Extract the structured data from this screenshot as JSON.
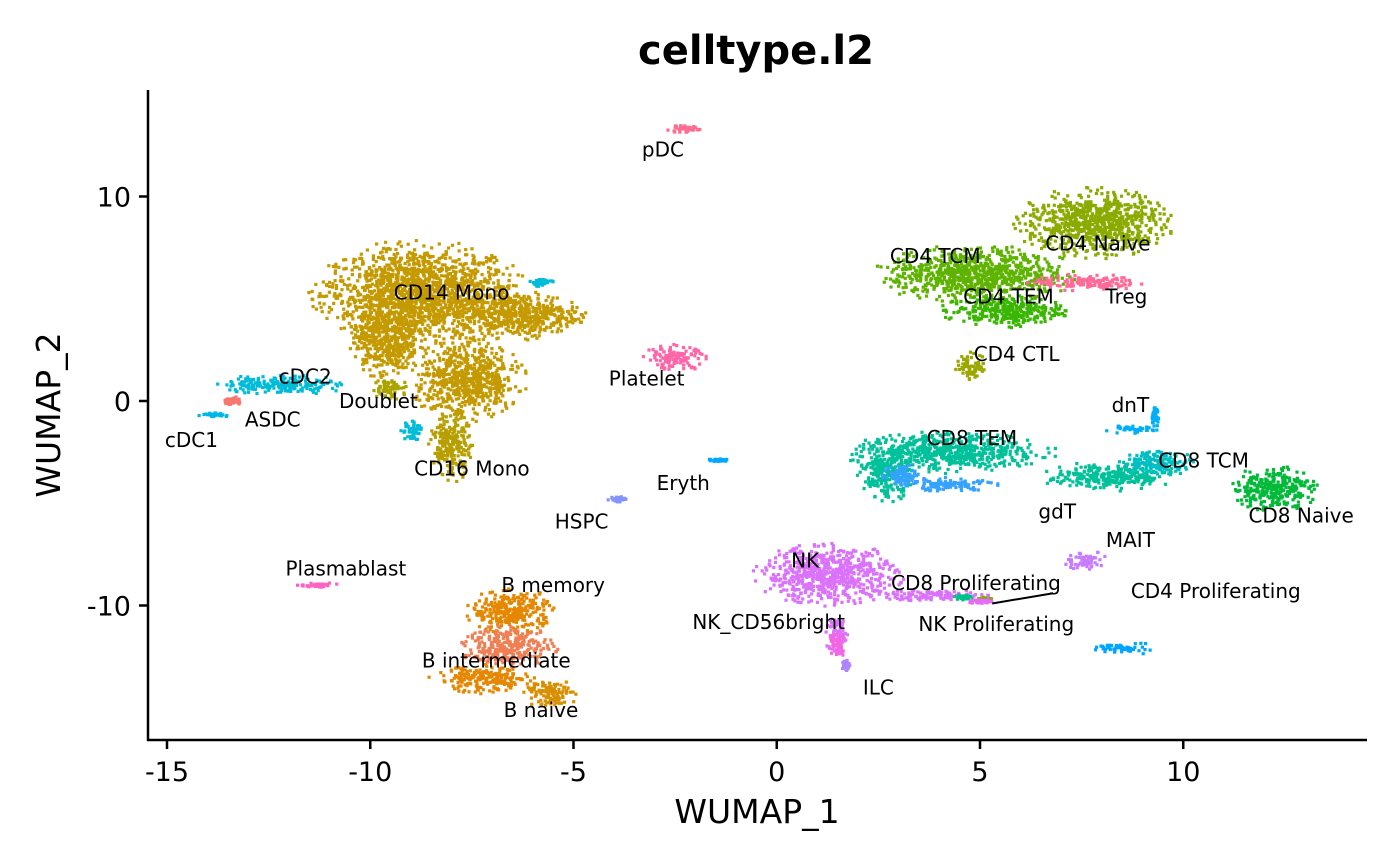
{
  "chart_data": {
    "type": "scatter",
    "title": "celltype.l2",
    "xlabel": "WUMAP_1",
    "ylabel": "WUMAP_2",
    "xlim": [
      -15.5,
      14.5
    ],
    "ylim": [
      -16.5,
      15
    ],
    "xticks": [
      -15,
      -10,
      -5,
      0,
      5,
      10
    ],
    "yticks": [
      -10,
      0,
      10
    ],
    "xtick_labels": [
      "-15",
      "-10",
      "-5",
      "0",
      "5",
      "10"
    ],
    "ytick_labels": [
      "-10",
      "0",
      "10"
    ],
    "grid": false,
    "legend": "none",
    "clusters": [
      {
        "name": "CD14 Mono",
        "color": "#C49A00",
        "blobs": [
          [
            -8.8,
            5.2,
            2.6,
            2.6
          ],
          [
            -6.3,
            4.2,
            1.6,
            1.2
          ],
          [
            -9.6,
            3.0,
            0.9,
            2.0
          ],
          [
            -7.6,
            1.0,
            1.4,
            2.0
          ]
        ],
        "label": [
          -8.0,
          5.3
        ]
      },
      {
        "name": "CD16 Mono",
        "color": "#B79F00",
        "blobs": [
          [
            -8.0,
            -2.2,
            0.55,
            1.7
          ]
        ],
        "label": [
          -7.5,
          -3.3
        ]
      },
      {
        "name": "Doublet",
        "color": "#ABA300",
        "blobs": [
          [
            -9.5,
            0.6,
            0.5,
            0.5
          ]
        ],
        "label": [
          -9.8,
          0.0
        ]
      },
      {
        "name": "cDC2",
        "color": "#00BCD8",
        "blobs": [
          [
            -12.2,
            0.8,
            1.6,
            0.5
          ],
          [
            -9.0,
            -1.4,
            0.3,
            0.6
          ],
          [
            -5.8,
            5.8,
            0.3,
            0.2
          ]
        ],
        "label": [
          -11.6,
          1.2
        ]
      },
      {
        "name": "ASDC",
        "color": "#F8766D",
        "blobs": [
          [
            -13.4,
            0.0,
            0.3,
            0.2
          ]
        ],
        "label": [
          -12.4,
          -0.9
        ]
      },
      {
        "name": "cDC1",
        "color": "#00B8E7",
        "blobs": [
          [
            -13.9,
            -0.7,
            0.4,
            0.12
          ]
        ],
        "label": [
          -14.4,
          -1.9
        ]
      },
      {
        "name": "pDC",
        "color": "#FF6C91",
        "blobs": [
          [
            -2.3,
            13.3,
            0.45,
            0.18
          ]
        ],
        "label": [
          -2.8,
          12.3
        ]
      },
      {
        "name": "Platelet",
        "color": "#FF66A8",
        "blobs": [
          [
            -2.5,
            2.1,
            0.8,
            0.65
          ]
        ],
        "label": [
          -3.2,
          1.1
        ]
      },
      {
        "name": "Eryth",
        "color": "#00A9FF",
        "blobs": [
          [
            -1.4,
            -2.9,
            0.3,
            0.1
          ]
        ],
        "label": [
          -2.3,
          -4.0
        ]
      },
      {
        "name": "HSPC",
        "color": "#8494FF",
        "blobs": [
          [
            -3.9,
            -4.8,
            0.25,
            0.15
          ]
        ],
        "label": [
          -4.8,
          -5.9
        ]
      },
      {
        "name": "Plasmablast",
        "color": "#FF61C3",
        "blobs": [
          [
            -11.3,
            -9.0,
            0.5,
            0.12
          ]
        ],
        "label": [
          -10.6,
          -8.2
        ]
      },
      {
        "name": "B memory",
        "color": "#E58700",
        "blobs": [
          [
            -6.5,
            -10.3,
            1.1,
            1.1
          ],
          [
            -7.2,
            -13.6,
            1.3,
            0.7
          ]
        ],
        "label": [
          -5.5,
          -9.0
        ]
      },
      {
        "name": "B intermediate",
        "color": "#F07F53",
        "blobs": [
          [
            -6.6,
            -12.0,
            1.2,
            1.0
          ]
        ],
        "label": [
          -6.9,
          -12.7
        ]
      },
      {
        "name": "B naive",
        "color": "#D89000",
        "blobs": [
          [
            -5.6,
            -14.3,
            0.7,
            0.7
          ]
        ],
        "label": [
          -5.8,
          -15.1
        ]
      },
      {
        "name": "CD4 Naive",
        "color": "#8AAB00",
        "blobs": [
          [
            7.8,
            8.7,
            1.9,
            1.7
          ]
        ],
        "label": [
          7.9,
          7.7
        ]
      },
      {
        "name": "CD4 TCM",
        "color": "#5EB300",
        "blobs": [
          [
            4.9,
            6.2,
            2.4,
            1.4
          ]
        ],
        "label": [
          3.9,
          7.1
        ]
      },
      {
        "name": "CD4 TEM",
        "color": "#39B600",
        "blobs": [
          [
            5.6,
            4.4,
            1.6,
            0.8
          ]
        ],
        "label": [
          5.7,
          5.1
        ]
      },
      {
        "name": "Treg",
        "color": "#FF6A98",
        "blobs": [
          [
            7.6,
            5.8,
            1.4,
            0.4
          ]
        ],
        "label": [
          8.6,
          5.1
        ]
      },
      {
        "name": "CD4 CTL",
        "color": "#9CA700",
        "blobs": [
          [
            4.8,
            1.7,
            0.4,
            0.7
          ]
        ],
        "label": [
          5.9,
          2.3
        ]
      },
      {
        "name": "CD8 TEM",
        "color": "#00C19A",
        "blobs": [
          [
            4.2,
            -2.5,
            2.6,
            1.0
          ],
          [
            8.2,
            -3.7,
            1.7,
            0.7
          ],
          [
            2.7,
            -3.7,
            0.7,
            1.2
          ]
        ],
        "label": [
          4.8,
          -1.8
        ]
      },
      {
        "name": "CD8 TCM",
        "color": "#00BFC4",
        "blobs": [
          [
            9.4,
            -3.0,
            1.0,
            0.6
          ]
        ],
        "label": [
          10.5,
          -2.9
        ]
      },
      {
        "name": "CD8 Naive",
        "color": "#00BA38",
        "blobs": [
          [
            12.2,
            -4.3,
            1.1,
            1.1
          ]
        ],
        "label": [
          12.9,
          -5.6
        ]
      },
      {
        "name": "dnT",
        "color": "#00AEFA",
        "blobs": [
          [
            8.7,
            -1.4,
            0.7,
            0.2
          ],
          [
            9.3,
            -0.8,
            0.1,
            0.5
          ]
        ],
        "label": [
          8.7,
          -0.2
        ]
      },
      {
        "name": "gdT",
        "color": "#35A2FF",
        "blobs": [
          [
            4.2,
            -4.1,
            1.3,
            0.35
          ],
          [
            3.1,
            -3.6,
            0.5,
            0.6
          ]
        ],
        "label": [
          6.9,
          -5.4
        ]
      },
      {
        "name": "MAIT",
        "color": "#C77CFF",
        "blobs": [
          [
            7.6,
            -7.8,
            0.5,
            0.5
          ]
        ],
        "label": [
          8.7,
          -6.8
        ]
      },
      {
        "name": "NK",
        "color": "#DB72FB",
        "blobs": [
          [
            1.3,
            -8.5,
            1.8,
            1.5
          ],
          [
            1.5,
            -11.5,
            0.3,
            1.1
          ],
          [
            3.7,
            -9.5,
            1.6,
            0.3
          ]
        ],
        "label": [
          0.7,
          -7.8
        ]
      },
      {
        "name": "NK_CD56bright",
        "color": "#F564E3",
        "blobs": [
          [
            1.5,
            -11.8,
            0.25,
            0.7
          ]
        ],
        "label": [
          -0.2,
          -10.8
        ]
      },
      {
        "name": "ILC",
        "color": "#AE87FF",
        "blobs": [
          [
            1.7,
            -12.9,
            0.1,
            0.3
          ]
        ],
        "label": [
          2.5,
          -14.0
        ]
      },
      {
        "name": "CD8 Proliferating",
        "color": "#00C08B",
        "blobs": [
          [
            4.6,
            -9.6,
            0.25,
            0.15
          ]
        ],
        "label": [
          4.9,
          -8.9
        ]
      },
      {
        "name": "CD4 Proliferating",
        "color": "#7CAE00",
        "blobs": [
          [
            5.1,
            -9.7,
            0.2,
            0.1
          ]
        ],
        "label": [
          10.8,
          -9.3
        ]
      },
      {
        "name": "NK Proliferating",
        "color": "#E76BF3",
        "blobs": [
          [
            5.0,
            -9.8,
            0.3,
            0.12
          ]
        ],
        "label": [
          5.4,
          -10.9
        ]
      },
      {
        "name": "",
        "color": "#00A5FF",
        "blobs": [
          [
            8.6,
            -12.1,
            0.8,
            0.3
          ]
        ],
        "label": null
      }
    ],
    "leader_lines": [
      [
        [
          5.3,
          -9.9
        ],
        [
          6.8,
          -9.4
        ]
      ]
    ]
  }
}
